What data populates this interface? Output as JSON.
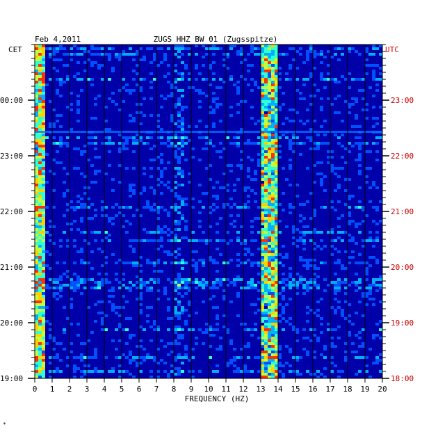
{
  "chart_data": {
    "type": "heatmap",
    "header_left": "Feb 4,2011",
    "header_center": "ZUGS HHZ BW 01 (Zugsspitze)",
    "left_axis_label": "CET",
    "right_axis_label": "UTC",
    "xlabel": "FREQUENCY (HZ)",
    "xlim": [
      0,
      20
    ],
    "x_ticks": [
      "0",
      "1",
      "2",
      "3",
      "4",
      "5",
      "6",
      "7",
      "8",
      "9",
      "10",
      "11",
      "12",
      "13",
      "14",
      "15",
      "16",
      "17",
      "18",
      "19",
      "20"
    ],
    "left_time_ticks": [
      "00:00",
      "23:00",
      "22:00",
      "21:00",
      "20:00",
      "19:00"
    ],
    "right_time_ticks": [
      "23:00",
      "22:00",
      "21:00",
      "20:00",
      "19:00",
      "18:00"
    ],
    "colors": {
      "background": "#0000a8",
      "grid": "#000000",
      "axis_text": "#000000",
      "utc_text": "#cc0000"
    }
  }
}
